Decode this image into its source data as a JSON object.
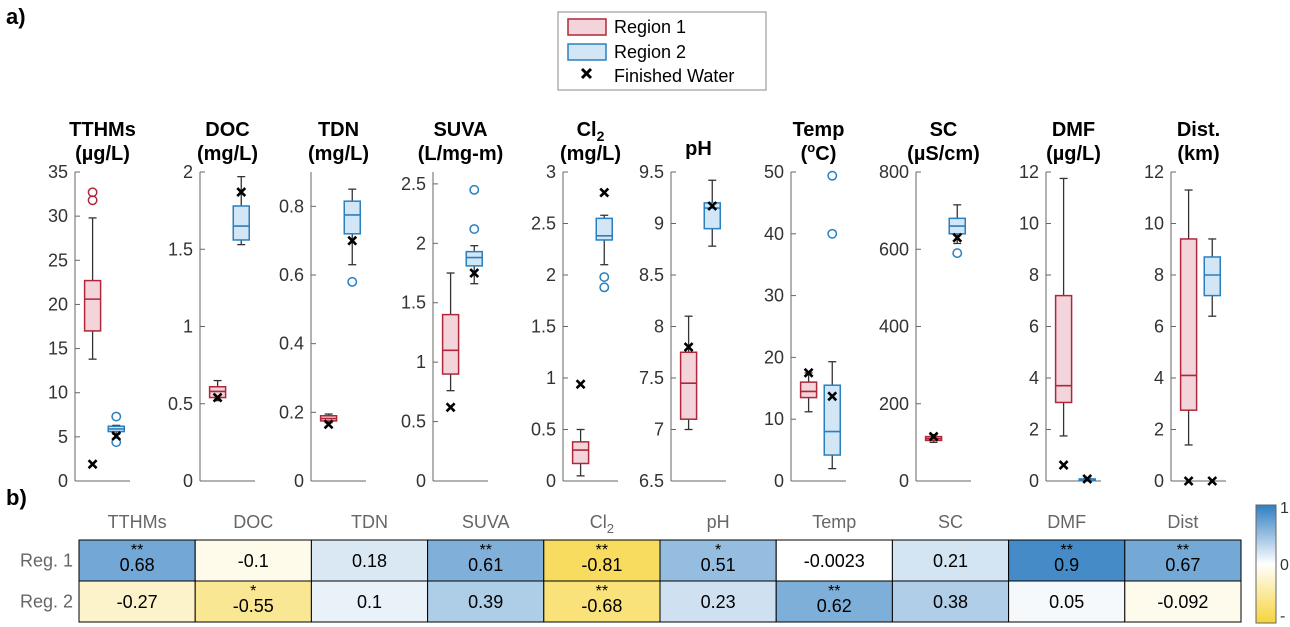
{
  "panel_labels": {
    "a": "a)",
    "b": "b)"
  },
  "legend": {
    "region1": "Region 1",
    "region2": "Region 2",
    "finished": "Finished Water"
  },
  "colors": {
    "region1_edge": "#b0263a",
    "region1_fill": "#f2d4da",
    "region2_edge": "#2a7fbf",
    "region2_fill": "#d3e6f5",
    "finished": "#000000",
    "axis": "#666666",
    "heat_neg": "#f6d43a",
    "heat_zero": "#ffffff",
    "heat_pos": "#2f7ec2"
  },
  "chart_data": [
    {
      "type": "box",
      "panel": "a)",
      "series_names": [
        "Region 1",
        "Region 2",
        "Finished Water"
      ],
      "panels": [
        {
          "title": [
            "TTHMs",
            "(µg/L)"
          ],
          "ylim": [
            0,
            35
          ],
          "yticks": [
            0,
            5,
            10,
            15,
            20,
            25,
            30,
            35
          ],
          "region1": {
            "whisker_low": 13.8,
            "q1": 17.0,
            "median": 20.6,
            "q3": 22.7,
            "whisker_high": 29.8,
            "outliers": [
              31.8,
              32.7
            ]
          },
          "region2": {
            "whisker_low": 5.3,
            "q1": 5.6,
            "median": 5.9,
            "q3": 6.2,
            "whisker_high": 6.3,
            "outliers": [
              7.3,
              4.4
            ]
          },
          "finished": [
            1.9,
            5.1
          ]
        },
        {
          "title": [
            "DOC",
            "(mg/L)"
          ],
          "ylim": [
            0,
            2
          ],
          "yticks": [
            0,
            0.5,
            1,
            1.5,
            2
          ],
          "region1": {
            "whisker_low": 0.52,
            "q1": 0.54,
            "median": 0.58,
            "q3": 0.61,
            "whisker_high": 0.65,
            "outliers": []
          },
          "region2": {
            "whisker_low": 1.53,
            "q1": 1.56,
            "median": 1.65,
            "q3": 1.78,
            "whisker_high": 1.97,
            "outliers": []
          },
          "finished": [
            0.54,
            1.87
          ]
        },
        {
          "title": [
            "TDN",
            "(mg/L)"
          ],
          "ylim": [
            0,
            0.9
          ],
          "yticks": [
            0,
            0.2,
            0.4,
            0.6,
            0.8
          ],
          "region1": {
            "whisker_low": 0.17,
            "q1": 0.175,
            "median": 0.182,
            "q3": 0.19,
            "whisker_high": 0.195,
            "outliers": []
          },
          "region2": {
            "whisker_low": 0.63,
            "q1": 0.72,
            "median": 0.775,
            "q3": 0.815,
            "whisker_high": 0.85,
            "outliers": [
              0.58
            ]
          },
          "finished": [
            0.165,
            0.7
          ]
        },
        {
          "title": [
            "SUVA",
            "(L/mg-m)"
          ],
          "ylim": [
            0,
            2.6
          ],
          "yticks": [
            0,
            0.5,
            1,
            1.5,
            2,
            2.5
          ],
          "region1": {
            "whisker_low": 0.76,
            "q1": 0.9,
            "median": 1.1,
            "q3": 1.4,
            "whisker_high": 1.75,
            "outliers": []
          },
          "region2": {
            "whisker_low": 1.66,
            "q1": 1.81,
            "median": 1.88,
            "q3": 1.93,
            "whisker_high": 1.98,
            "outliers": [
              2.12,
              2.45
            ]
          },
          "finished": [
            0.62,
            1.75
          ]
        },
        {
          "title_main": "Cl",
          "title_sub": "2",
          "title_unit": "(mg/L)",
          "ylim": [
            0,
            3
          ],
          "yticks": [
            0,
            0.5,
            1,
            1.5,
            2,
            2.5,
            3
          ],
          "region1": {
            "whisker_low": 0.05,
            "q1": 0.17,
            "median": 0.3,
            "q3": 0.38,
            "whisker_high": 0.5,
            "outliers": []
          },
          "region2": {
            "whisker_low": 2.1,
            "q1": 2.34,
            "median": 2.38,
            "q3": 2.55,
            "whisker_high": 2.58,
            "outliers": [
              1.98,
              1.88
            ]
          },
          "finished": [
            0.94,
            2.8
          ]
        },
        {
          "title": [
            "pH"
          ],
          "ylim": [
            6.5,
            9.5
          ],
          "yticks": [
            6.5,
            7,
            7.5,
            8,
            8.5,
            9,
            9.5
          ],
          "region1": {
            "whisker_low": 7.0,
            "q1": 7.1,
            "median": 7.45,
            "q3": 7.75,
            "whisker_high": 8.1,
            "outliers": []
          },
          "region2": {
            "whisker_low": 8.78,
            "q1": 8.95,
            "median": 9.15,
            "q3": 9.2,
            "whisker_high": 9.42,
            "outliers": []
          },
          "finished": [
            7.8,
            9.17
          ]
        },
        {
          "title_main": "Temp",
          "title_pre": "(",
          "title_sup": "o",
          "title_post": "C)",
          "ylim": [
            0,
            50
          ],
          "yticks": [
            0,
            10,
            20,
            30,
            40,
            50
          ],
          "region1": {
            "whisker_low": 11.2,
            "q1": 13.5,
            "median": 14.5,
            "q3": 16.0,
            "whisker_high": 17.5,
            "outliers": []
          },
          "region2": {
            "whisker_low": 2.0,
            "q1": 4.2,
            "median": 8.0,
            "q3": 15.5,
            "whisker_high": 19.3,
            "outliers": [
              40.0,
              49.4
            ]
          },
          "finished": [
            17.5,
            13.7
          ]
        },
        {
          "title": [
            "SC",
            "(µS/cm)"
          ],
          "ylim": [
            0,
            800
          ],
          "yticks": [
            0,
            200,
            400,
            600,
            800
          ],
          "region1": {
            "whisker_low": 100,
            "q1": 105,
            "median": 110,
            "q3": 115,
            "whisker_high": 120,
            "outliers": []
          },
          "region2": {
            "whisker_low": 615,
            "q1": 640,
            "median": 660,
            "q3": 680,
            "whisker_high": 715,
            "outliers": [
              590
            ]
          },
          "finished": [
            115,
            630
          ]
        },
        {
          "title": [
            "DMF",
            "(µg/L)"
          ],
          "ylim": [
            0,
            12
          ],
          "yticks": [
            0,
            2,
            4,
            6,
            8,
            10,
            12
          ],
          "region1": {
            "whisker_low": 1.75,
            "q1": 3.05,
            "median": 3.7,
            "q3": 7.2,
            "whisker_high": 11.75,
            "outliers": []
          },
          "region2": {
            "whisker_low": 0.0,
            "q1": 0.02,
            "median": 0.04,
            "q3": 0.08,
            "whisker_high": 0.1,
            "outliers": []
          },
          "finished": [
            0.62,
            0.08
          ]
        },
        {
          "title": [
            "Dist.",
            "(km)"
          ],
          "ylim": [
            0,
            12
          ],
          "yticks": [
            0,
            2,
            4,
            6,
            8,
            10,
            12
          ],
          "region1": {
            "whisker_low": 1.4,
            "q1": 2.75,
            "median": 4.1,
            "q3": 9.4,
            "whisker_high": 11.3,
            "outliers": []
          },
          "region2": {
            "whisker_low": 6.4,
            "q1": 7.2,
            "median": 8.0,
            "q3": 8.7,
            "whisker_high": 9.4,
            "outliers": []
          },
          "finished": [
            0.0,
            0.0
          ]
        }
      ]
    },
    {
      "type": "heatmap",
      "panel": "b)",
      "columns": [
        "TTHMs",
        "DOC",
        "TDN",
        "SUVA",
        "Cl2",
        "pH",
        "Temp",
        "SC",
        "DMF",
        "Dist"
      ],
      "column_labels": [
        {
          "main": "TTHMs"
        },
        {
          "main": "DOC"
        },
        {
          "main": "TDN"
        },
        {
          "main": "SUVA"
        },
        {
          "main": "Cl",
          "sub": "2"
        },
        {
          "main": "pH"
        },
        {
          "main": "Temp"
        },
        {
          "main": "SC"
        },
        {
          "main": "DMF"
        },
        {
          "main": "Dist"
        }
      ],
      "rows": [
        "Reg. 1",
        "Reg. 2"
      ],
      "values": [
        [
          0.68,
          -0.1,
          0.18,
          0.61,
          -0.81,
          0.51,
          -0.0023,
          0.21,
          0.9,
          0.67
        ],
        [
          -0.27,
          -0.55,
          0.1,
          0.39,
          -0.68,
          0.23,
          0.62,
          0.38,
          0.05,
          -0.092
        ]
      ],
      "value_labels": [
        [
          "0.68",
          "-0.1",
          "0.18",
          "0.61",
          "-0.81",
          "0.51",
          "-0.0023",
          "0.21",
          "0.9",
          "0.67"
        ],
        [
          "-0.27",
          "-0.55",
          "0.1",
          "0.39",
          "-0.68",
          "0.23",
          "0.62",
          "0.38",
          "0.05",
          "-0.092"
        ]
      ],
      "significance": [
        [
          "**",
          "",
          "",
          "**",
          "**",
          "*",
          "",
          "",
          "**",
          "**"
        ],
        [
          "",
          "*",
          "",
          "",
          "**",
          "",
          "**",
          "",
          "",
          ""
        ]
      ],
      "colorbar": {
        "range": [
          -1,
          1
        ],
        "tick_labels": [
          "1",
          "0",
          "-"
        ]
      }
    }
  ]
}
